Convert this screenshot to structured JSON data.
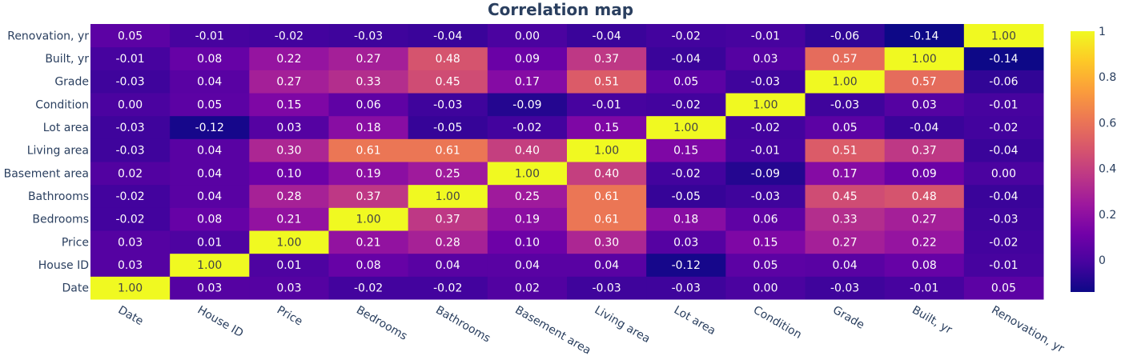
{
  "chart_data": {
    "type": "heatmap",
    "title": "Correlation map",
    "x": [
      "Date",
      "House ID",
      "Price",
      "Bedrooms",
      "Bathrooms",
      "Basement area",
      "Living area",
      "Lot area",
      "Condition",
      "Grade",
      "Built, yr",
      "Renovation, yr"
    ],
    "y": [
      "Date",
      "House ID",
      "Price",
      "Bedrooms",
      "Bathrooms",
      "Basement area",
      "Living area",
      "Lot area",
      "Condition",
      "Grade",
      "Built, yr",
      "Renovation, yr"
    ],
    "z": [
      [
        1.0,
        0.03,
        0.03,
        -0.02,
        -0.02,
        0.02,
        -0.03,
        -0.03,
        0.0,
        -0.03,
        -0.01,
        0.05
      ],
      [
        0.03,
        1.0,
        0.01,
        0.08,
        0.04,
        0.04,
        0.04,
        -0.12,
        0.05,
        0.04,
        0.08,
        -0.01
      ],
      [
        0.03,
        0.01,
        1.0,
        0.21,
        0.28,
        0.1,
        0.3,
        0.03,
        0.15,
        0.27,
        0.22,
        -0.02
      ],
      [
        -0.02,
        0.08,
        0.21,
        1.0,
        0.37,
        0.19,
        0.61,
        0.18,
        0.06,
        0.33,
        0.27,
        -0.03
      ],
      [
        -0.02,
        0.04,
        0.28,
        0.37,
        1.0,
        0.25,
        0.61,
        -0.05,
        -0.03,
        0.45,
        0.48,
        -0.04
      ],
      [
        0.02,
        0.04,
        0.1,
        0.19,
        0.25,
        1.0,
        0.4,
        -0.02,
        -0.09,
        0.17,
        0.09,
        0.0
      ],
      [
        -0.03,
        0.04,
        0.3,
        0.61,
        0.61,
        0.4,
        1.0,
        0.15,
        -0.01,
        0.51,
        0.37,
        -0.04
      ],
      [
        -0.03,
        -0.12,
        0.03,
        0.18,
        -0.05,
        -0.02,
        0.15,
        1.0,
        -0.02,
        0.05,
        -0.04,
        -0.02
      ],
      [
        0.0,
        0.05,
        0.15,
        0.06,
        -0.03,
        -0.09,
        -0.01,
        -0.02,
        1.0,
        -0.03,
        0.03,
        -0.01
      ],
      [
        -0.03,
        0.04,
        0.27,
        0.33,
        0.45,
        0.17,
        0.51,
        0.05,
        -0.03,
        1.0,
        0.57,
        -0.06
      ],
      [
        -0.01,
        0.08,
        0.22,
        0.27,
        0.48,
        0.09,
        0.37,
        -0.04,
        0.03,
        0.57,
        1.0,
        -0.14
      ],
      [
        0.05,
        -0.01,
        -0.02,
        -0.03,
        -0.04,
        0.0,
        -0.04,
        -0.02,
        -0.01,
        -0.06,
        -0.14,
        1.0
      ]
    ],
    "zrange": [
      -0.14,
      1.0
    ],
    "colorscale": [
      "#0d0887",
      "#46039f",
      "#7201a8",
      "#9c179e",
      "#bd3786",
      "#d8576b",
      "#ed7953",
      "#fb9f3a",
      "#fdca26",
      "#f0f921"
    ],
    "colorbar_ticks": [
      0,
      0.2,
      0.4,
      0.6,
      0.8,
      1
    ],
    "colorbar_tick_labels": [
      "0",
      "0.2",
      "0.4",
      "0.6",
      "0.8",
      "1"
    ],
    "x_tick_angle_deg": 30
  }
}
